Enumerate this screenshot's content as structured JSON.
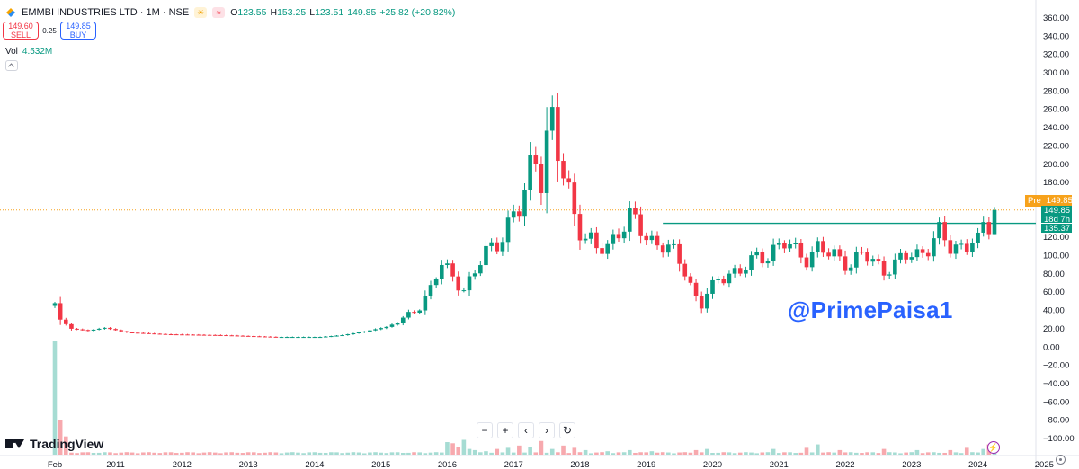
{
  "header": {
    "symbol": "EMMBI INDUSTRIES LTD · 1M · NSE",
    "ohlc": [
      {
        "k": "O",
        "v": "123.55"
      },
      {
        "k": "H",
        "v": "153.25"
      },
      {
        "k": "L",
        "v": "123.51"
      },
      {
        "k": "",
        "v": "149.85"
      },
      {
        "k": "",
        "v": "+25.82 (+20.82%)"
      }
    ],
    "icons": [
      "sun-icon",
      "wave-icon"
    ]
  },
  "trade": {
    "sell_price": "149.60",
    "sell_label": "SELL",
    "spread": "0.25",
    "buy_price": "149.85",
    "buy_label": "BUY"
  },
  "volume": {
    "label": "Vol",
    "value": "4.532M"
  },
  "watermark": "@PrimePaisa1",
  "brand": "TradingView",
  "zoom_controls": [
    "−",
    "+",
    "‹",
    "›",
    "↻"
  ],
  "price_tags": {
    "pre_label": "Pre",
    "pre_value": "149.85",
    "last_price": "149.85",
    "countdown": "18d 7h",
    "line_value": "135.37"
  },
  "colors": {
    "up": "#089981",
    "down": "#f23645",
    "pre": "#f7a21b",
    "vol_up": "#a6dcd3",
    "vol_down": "#f7a9ae"
  },
  "chart_data": {
    "type": "candlestick",
    "y_axis_ticks": [
      360,
      340,
      320,
      300,
      280,
      260,
      240,
      220,
      200,
      180,
      160,
      140,
      120,
      100,
      80,
      60,
      40,
      20,
      0,
      -20,
      -40,
      -60,
      -80,
      -100
    ],
    "y_axis_labels": [
      "360.00",
      "340.00",
      "320.00",
      "300.00",
      "280.00",
      "260.00",
      "240.00",
      "220.00",
      "200.00",
      "180.00",
      "160.00",
      "140.00",
      "120.00",
      "100.00",
      "80.00",
      "60.00",
      "40.00",
      "20.00",
      "0.00",
      "−20.00",
      "−40.00",
      "−60.00",
      "−80.00",
      "−100.00"
    ],
    "ylim": [
      -110,
      370
    ],
    "x_axis_labels": [
      "Feb",
      "2011",
      "2012",
      "2013",
      "2014",
      "2015",
      "2016",
      "2017",
      "2018",
      "2019",
      "2020",
      "2021",
      "2022",
      "2023",
      "2024",
      "2025"
    ],
    "x_axis_positions": [
      0,
      11,
      23,
      35,
      47,
      59,
      71,
      83,
      95,
      107,
      119,
      131,
      143,
      155,
      167,
      179
    ],
    "horizontal_line": 135.37,
    "pre_market_line": 149.85,
    "anchors": [
      [
        0,
        48
      ],
      [
        1,
        30
      ],
      [
        3,
        20
      ],
      [
        6,
        18
      ],
      [
        9,
        21
      ],
      [
        13,
        16
      ],
      [
        20,
        14
      ],
      [
        30,
        13
      ],
      [
        40,
        11
      ],
      [
        48,
        11
      ],
      [
        52,
        13
      ],
      [
        56,
        17
      ],
      [
        60,
        22
      ],
      [
        63,
        30
      ],
      [
        66,
        45
      ],
      [
        68,
        65
      ],
      [
        70,
        88
      ],
      [
        72,
        78
      ],
      [
        74,
        64
      ],
      [
        76,
        80
      ],
      [
        78,
        103
      ],
      [
        80,
        118
      ],
      [
        82,
        132
      ],
      [
        84,
        148
      ],
      [
        85,
        168
      ],
      [
        86,
        198
      ],
      [
        87,
        215
      ],
      [
        88,
        190
      ],
      [
        89,
        228
      ],
      [
        90,
        238
      ],
      [
        91,
        205
      ],
      [
        92,
        190
      ],
      [
        93,
        172
      ],
      [
        94,
        148
      ],
      [
        95,
        132
      ],
      [
        96,
        120
      ],
      [
        97,
        112
      ],
      [
        98,
        104
      ],
      [
        100,
        112
      ],
      [
        102,
        130
      ],
      [
        104,
        138
      ],
      [
        106,
        128
      ],
      [
        108,
        118
      ],
      [
        110,
        112
      ],
      [
        112,
        100
      ],
      [
        114,
        85
      ],
      [
        116,
        55
      ],
      [
        117,
        45
      ],
      [
        118,
        58
      ],
      [
        120,
        72
      ],
      [
        122,
        84
      ],
      [
        124,
        82
      ],
      [
        126,
        92
      ],
      [
        128,
        100
      ],
      [
        130,
        108
      ],
      [
        132,
        112
      ],
      [
        134,
        104
      ],
      [
        136,
        100
      ],
      [
        138,
        108
      ],
      [
        140,
        100
      ],
      [
        142,
        98
      ],
      [
        144,
        92
      ],
      [
        146,
        100
      ],
      [
        148,
        93
      ],
      [
        150,
        86
      ],
      [
        152,
        90
      ],
      [
        154,
        98
      ],
      [
        156,
        102
      ],
      [
        158,
        112
      ],
      [
        160,
        122
      ],
      [
        162,
        108
      ],
      [
        164,
        112
      ],
      [
        166,
        118
      ],
      [
        167,
        112
      ],
      [
        168,
        128
      ],
      [
        169,
        123.55
      ]
    ],
    "last_candle": {
      "o": 123.55,
      "h": 153.25,
      "l": 123.51,
      "c": 149.85
    },
    "volume_spikes": [
      [
        0,
        1.0
      ],
      [
        1,
        0.3
      ],
      [
        2,
        0.16
      ],
      [
        71,
        0.11
      ],
      [
        72,
        0.1
      ],
      [
        73,
        0.07
      ],
      [
        74,
        0.13
      ],
      [
        75,
        0.05
      ],
      [
        76,
        0.04
      ],
      [
        78,
        0.03
      ],
      [
        80,
        0.05
      ],
      [
        82,
        0.06
      ],
      [
        84,
        0.08
      ],
      [
        86,
        0.07
      ],
      [
        88,
        0.12
      ],
      [
        90,
        0.05
      ],
      [
        92,
        0.08
      ],
      [
        94,
        0.06
      ],
      [
        96,
        0.04
      ],
      [
        100,
        0.03
      ],
      [
        104,
        0.04
      ],
      [
        108,
        0.03
      ],
      [
        116,
        0.04
      ],
      [
        118,
        0.05
      ],
      [
        130,
        0.05
      ],
      [
        136,
        0.06
      ],
      [
        138,
        0.09
      ],
      [
        142,
        0.04
      ],
      [
        150,
        0.05
      ],
      [
        156,
        0.04
      ],
      [
        162,
        0.04
      ],
      [
        165,
        0.06
      ],
      [
        168,
        0.05
      ],
      [
        169,
        0.09
      ]
    ]
  }
}
